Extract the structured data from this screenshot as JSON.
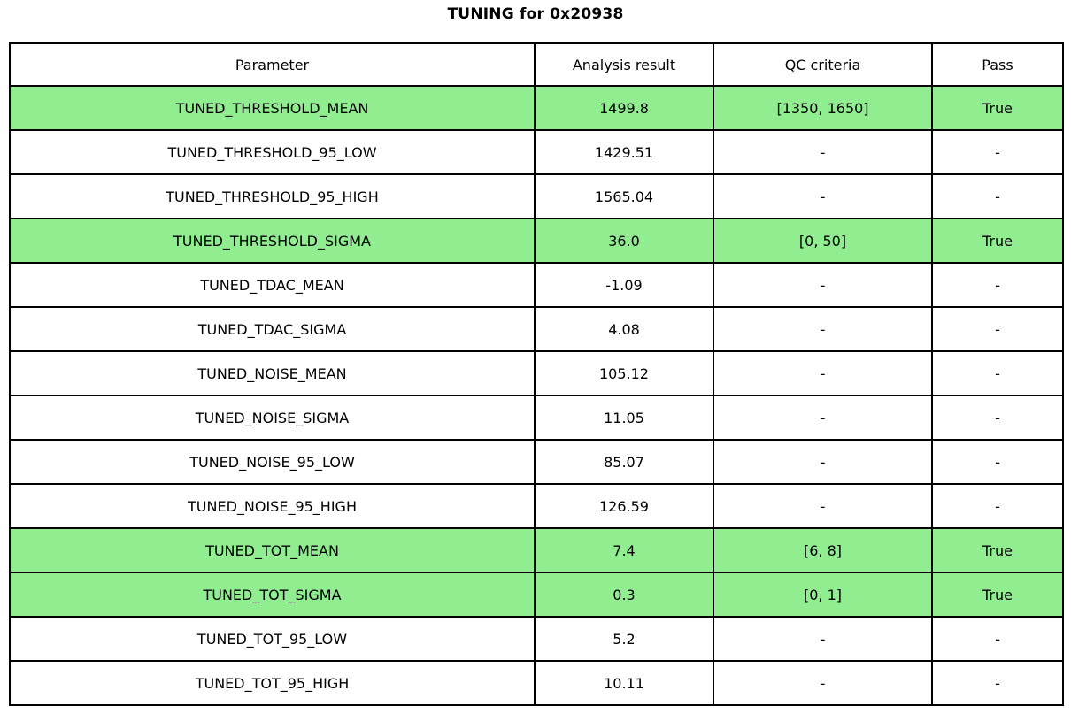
{
  "title": "TUNING for 0x20938",
  "colors": {
    "highlight_green": "#90EE90",
    "border": "#000000",
    "background": "#ffffff"
  },
  "chart_data": {
    "type": "table",
    "title": "TUNING for 0x20938",
    "columns": [
      "Parameter",
      "Analysis result",
      "QC criteria",
      "Pass"
    ],
    "rows": [
      [
        "TUNED_THRESHOLD_MEAN",
        "1499.8",
        "[1350, 1650]",
        "True"
      ],
      [
        "TUNED_THRESHOLD_95_LOW",
        "1429.51",
        "-",
        "-"
      ],
      [
        "TUNED_THRESHOLD_95_HIGH",
        "1565.04",
        "-",
        "-"
      ],
      [
        "TUNED_THRESHOLD_SIGMA",
        "36.0",
        "[0, 50]",
        "True"
      ],
      [
        "TUNED_TDAC_MEAN",
        "-1.09",
        "-",
        "-"
      ],
      [
        "TUNED_TDAC_SIGMA",
        "4.08",
        "-",
        "-"
      ],
      [
        "TUNED_NOISE_MEAN",
        "105.12",
        "-",
        "-"
      ],
      [
        "TUNED_NOISE_SIGMA",
        "11.05",
        "-",
        "-"
      ],
      [
        "TUNED_NOISE_95_LOW",
        "85.07",
        "-",
        "-"
      ],
      [
        "TUNED_NOISE_95_HIGH",
        "126.59",
        "-",
        "-"
      ],
      [
        "TUNED_TOT_MEAN",
        "7.4",
        "[6, 8]",
        "True"
      ],
      [
        "TUNED_TOT_SIGMA",
        "0.3",
        "[0, 1]",
        "True"
      ],
      [
        "TUNED_TOT_95_LOW",
        "5.2",
        "-",
        "-"
      ],
      [
        "TUNED_TOT_95_HIGH",
        "10.11",
        "-",
        "-"
      ]
    ],
    "highlighted_rows": [
      0,
      3,
      10,
      11
    ],
    "highlight_color": "#90EE90",
    "layout": {
      "grid": "full-borders",
      "legend": "none"
    }
  }
}
